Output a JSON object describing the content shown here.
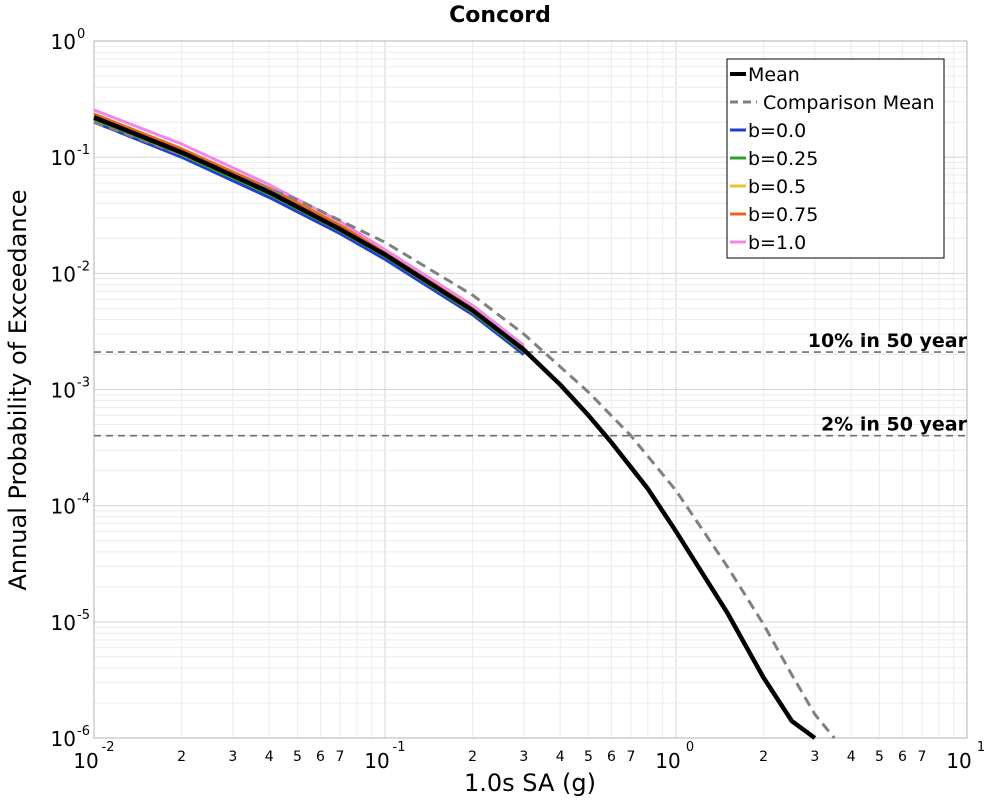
{
  "chart_data": {
    "type": "line",
    "title": "Concord",
    "xlabel": "1.0s SA (g)",
    "ylabel": "Annual Probability of Exceedance",
    "x_scale": "log",
    "y_scale": "log",
    "xlim": [
      0.01,
      10
    ],
    "ylim": [
      1e-06,
      1
    ],
    "grid": true,
    "legend_position": "top-right",
    "x_major_ticks": [
      {
        "base": "10",
        "exp": "-2",
        "value": 0.01
      },
      {
        "base": "10",
        "exp": "-1",
        "value": 0.1
      },
      {
        "base": "10",
        "exp": "0",
        "value": 1
      },
      {
        "base": "10",
        "exp": "1",
        "value": 10
      }
    ],
    "y_major_ticks": [
      {
        "base": "10",
        "exp": "0",
        "value": 1
      },
      {
        "base": "10",
        "exp": "-1",
        "value": 0.1
      },
      {
        "base": "10",
        "exp": "-2",
        "value": 0.01
      },
      {
        "base": "10",
        "exp": "-3",
        "value": 0.001
      },
      {
        "base": "10",
        "exp": "-4",
        "value": 0.0001
      },
      {
        "base": "10",
        "exp": "-5",
        "value": 1e-05
      },
      {
        "base": "10",
        "exp": "-6",
        "value": 1e-06
      }
    ],
    "x_minor_tick_labels": [
      "2",
      "3",
      "4",
      "5",
      "6",
      "7"
    ],
    "reference_lines": [
      {
        "label": "10% in 50 year",
        "y": 0.0021
      },
      {
        "label": "2% in 50 year",
        "y": 0.0004
      }
    ],
    "series": [
      {
        "name": "Mean",
        "color": "#000000",
        "style": "solid",
        "x": [
          0.01,
          0.02,
          0.04,
          0.07,
          0.1,
          0.2,
          0.3,
          0.4,
          0.5,
          0.6,
          0.8,
          1.0,
          1.5,
          2.0,
          2.5,
          3.0
        ],
        "y": [
          0.22,
          0.11,
          0.05,
          0.024,
          0.0145,
          0.0048,
          0.0022,
          0.0011,
          0.0006,
          0.00035,
          0.00014,
          6e-05,
          1.2e-05,
          3.3e-06,
          1.4e-06,
          1e-06
        ]
      },
      {
        "name": "Comparison Mean",
        "color": "#808080",
        "style": "dashed",
        "x": [
          0.01,
          0.02,
          0.05,
          0.1,
          0.2,
          0.3,
          0.5,
          0.7,
          1.0,
          1.5,
          2.0,
          2.5,
          3.0,
          3.5
        ],
        "y": [
          0.2,
          0.105,
          0.043,
          0.0185,
          0.0065,
          0.003,
          0.00095,
          0.0004,
          0.000135,
          3e-05,
          9.5e-06,
          3.5e-06,
          1.6e-06,
          1e-06
        ]
      },
      {
        "name": "b=0.0",
        "color": "#1f3fd6",
        "style": "solid",
        "x": [
          0.01,
          0.02,
          0.04,
          0.07,
          0.1,
          0.2,
          0.3
        ],
        "y": [
          0.2,
          0.1,
          0.045,
          0.022,
          0.0132,
          0.0044,
          0.002
        ]
      },
      {
        "name": "b=0.25",
        "color": "#3a9b2e",
        "style": "solid",
        "x": [
          0.01,
          0.02,
          0.04,
          0.07,
          0.1,
          0.2,
          0.3
        ],
        "y": [
          0.21,
          0.105,
          0.048,
          0.0232,
          0.014,
          0.0046,
          0.0021
        ]
      },
      {
        "name": "b=0.5",
        "color": "#e5c62a",
        "style": "solid",
        "x": [
          0.01,
          0.02,
          0.04,
          0.07,
          0.1,
          0.2,
          0.3
        ],
        "y": [
          0.225,
          0.113,
          0.051,
          0.0245,
          0.0148,
          0.0049,
          0.0022
        ]
      },
      {
        "name": "b=0.75",
        "color": "#e8651c",
        "style": "solid",
        "x": [
          0.01,
          0.02,
          0.04,
          0.07,
          0.1,
          0.2,
          0.3
        ],
        "y": [
          0.235,
          0.118,
          0.054,
          0.026,
          0.0155,
          0.0051,
          0.0023
        ]
      },
      {
        "name": "b=1.0",
        "color": "#f089e6",
        "style": "solid",
        "x": [
          0.01,
          0.02,
          0.04,
          0.07,
          0.1,
          0.2,
          0.3
        ],
        "y": [
          0.255,
          0.13,
          0.058,
          0.028,
          0.016,
          0.0053,
          0.0024
        ]
      }
    ]
  }
}
